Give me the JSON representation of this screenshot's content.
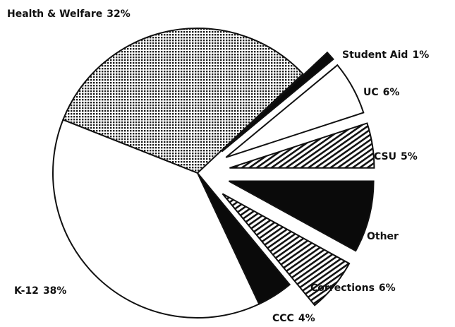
{
  "chart_data": {
    "type": "pie",
    "categories": [
      "Health & Welfare",
      "Student Aid",
      "UC",
      "CSU",
      "Other",
      "Corrections",
      "CCC",
      "K-12"
    ],
    "values": [
      32,
      1,
      6,
      5,
      8,
      6,
      4,
      38
    ],
    "value_labels": [
      "32%",
      "1%",
      "6%",
      "5%",
      null,
      "6%",
      "4%",
      "38%"
    ],
    "fills": [
      "dots",
      "black",
      "white",
      "hatch",
      "black",
      "hatch",
      "black",
      "white"
    ],
    "exploded": [
      false,
      true,
      true,
      true,
      true,
      true,
      false,
      false
    ]
  }
}
